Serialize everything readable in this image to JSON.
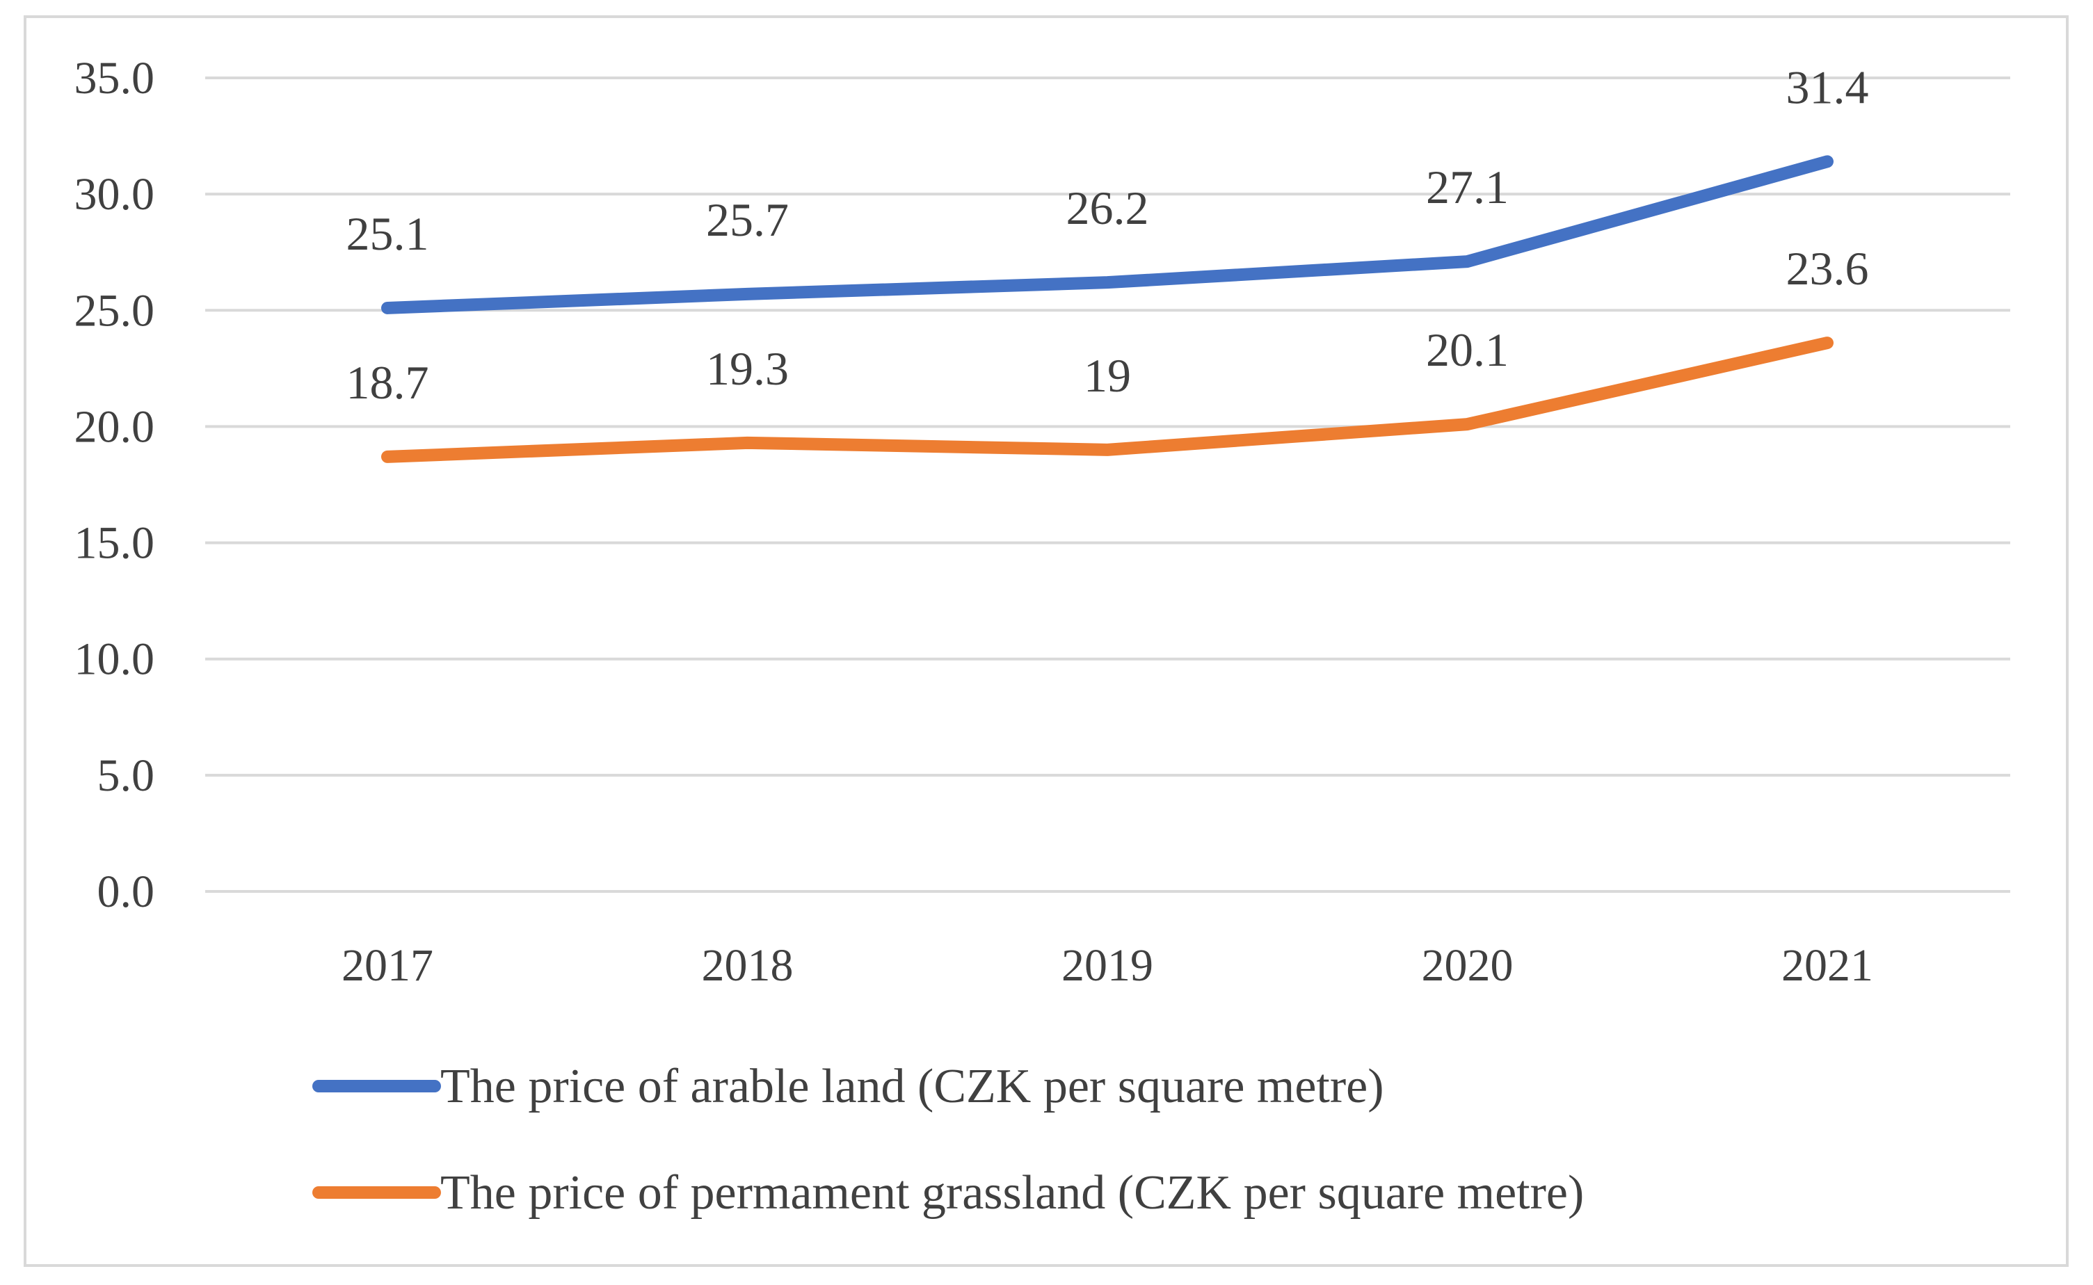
{
  "chart_data": {
    "type": "line",
    "title": "",
    "xlabel": "",
    "ylabel": "",
    "categories": [
      "2017",
      "2018",
      "2019",
      "2020",
      "2021"
    ],
    "ylim": [
      0,
      35
    ],
    "ytick_step": 5,
    "ytick_labels": [
      "0.0",
      "5.0",
      "10.0",
      "15.0",
      "20.0",
      "25.0",
      "30.0",
      "35.0"
    ],
    "grid": true,
    "legend_position": "bottom",
    "series": [
      {
        "name": "The price of arable land (CZK per square metre)",
        "color": "#4472c4",
        "values": [
          25.1,
          25.7,
          26.2,
          27.1,
          31.4
        ],
        "labels": [
          "25.1",
          "25.7",
          "26.2",
          "27.1",
          "31.4"
        ]
      },
      {
        "name": "The price of permament grassland (CZK per square metre)",
        "color": "#ed7d31",
        "values": [
          18.7,
          19.3,
          19.0,
          20.1,
          23.6
        ],
        "labels": [
          "18.7",
          "19.3",
          "19",
          "20.1",
          "23.6"
        ]
      }
    ]
  }
}
